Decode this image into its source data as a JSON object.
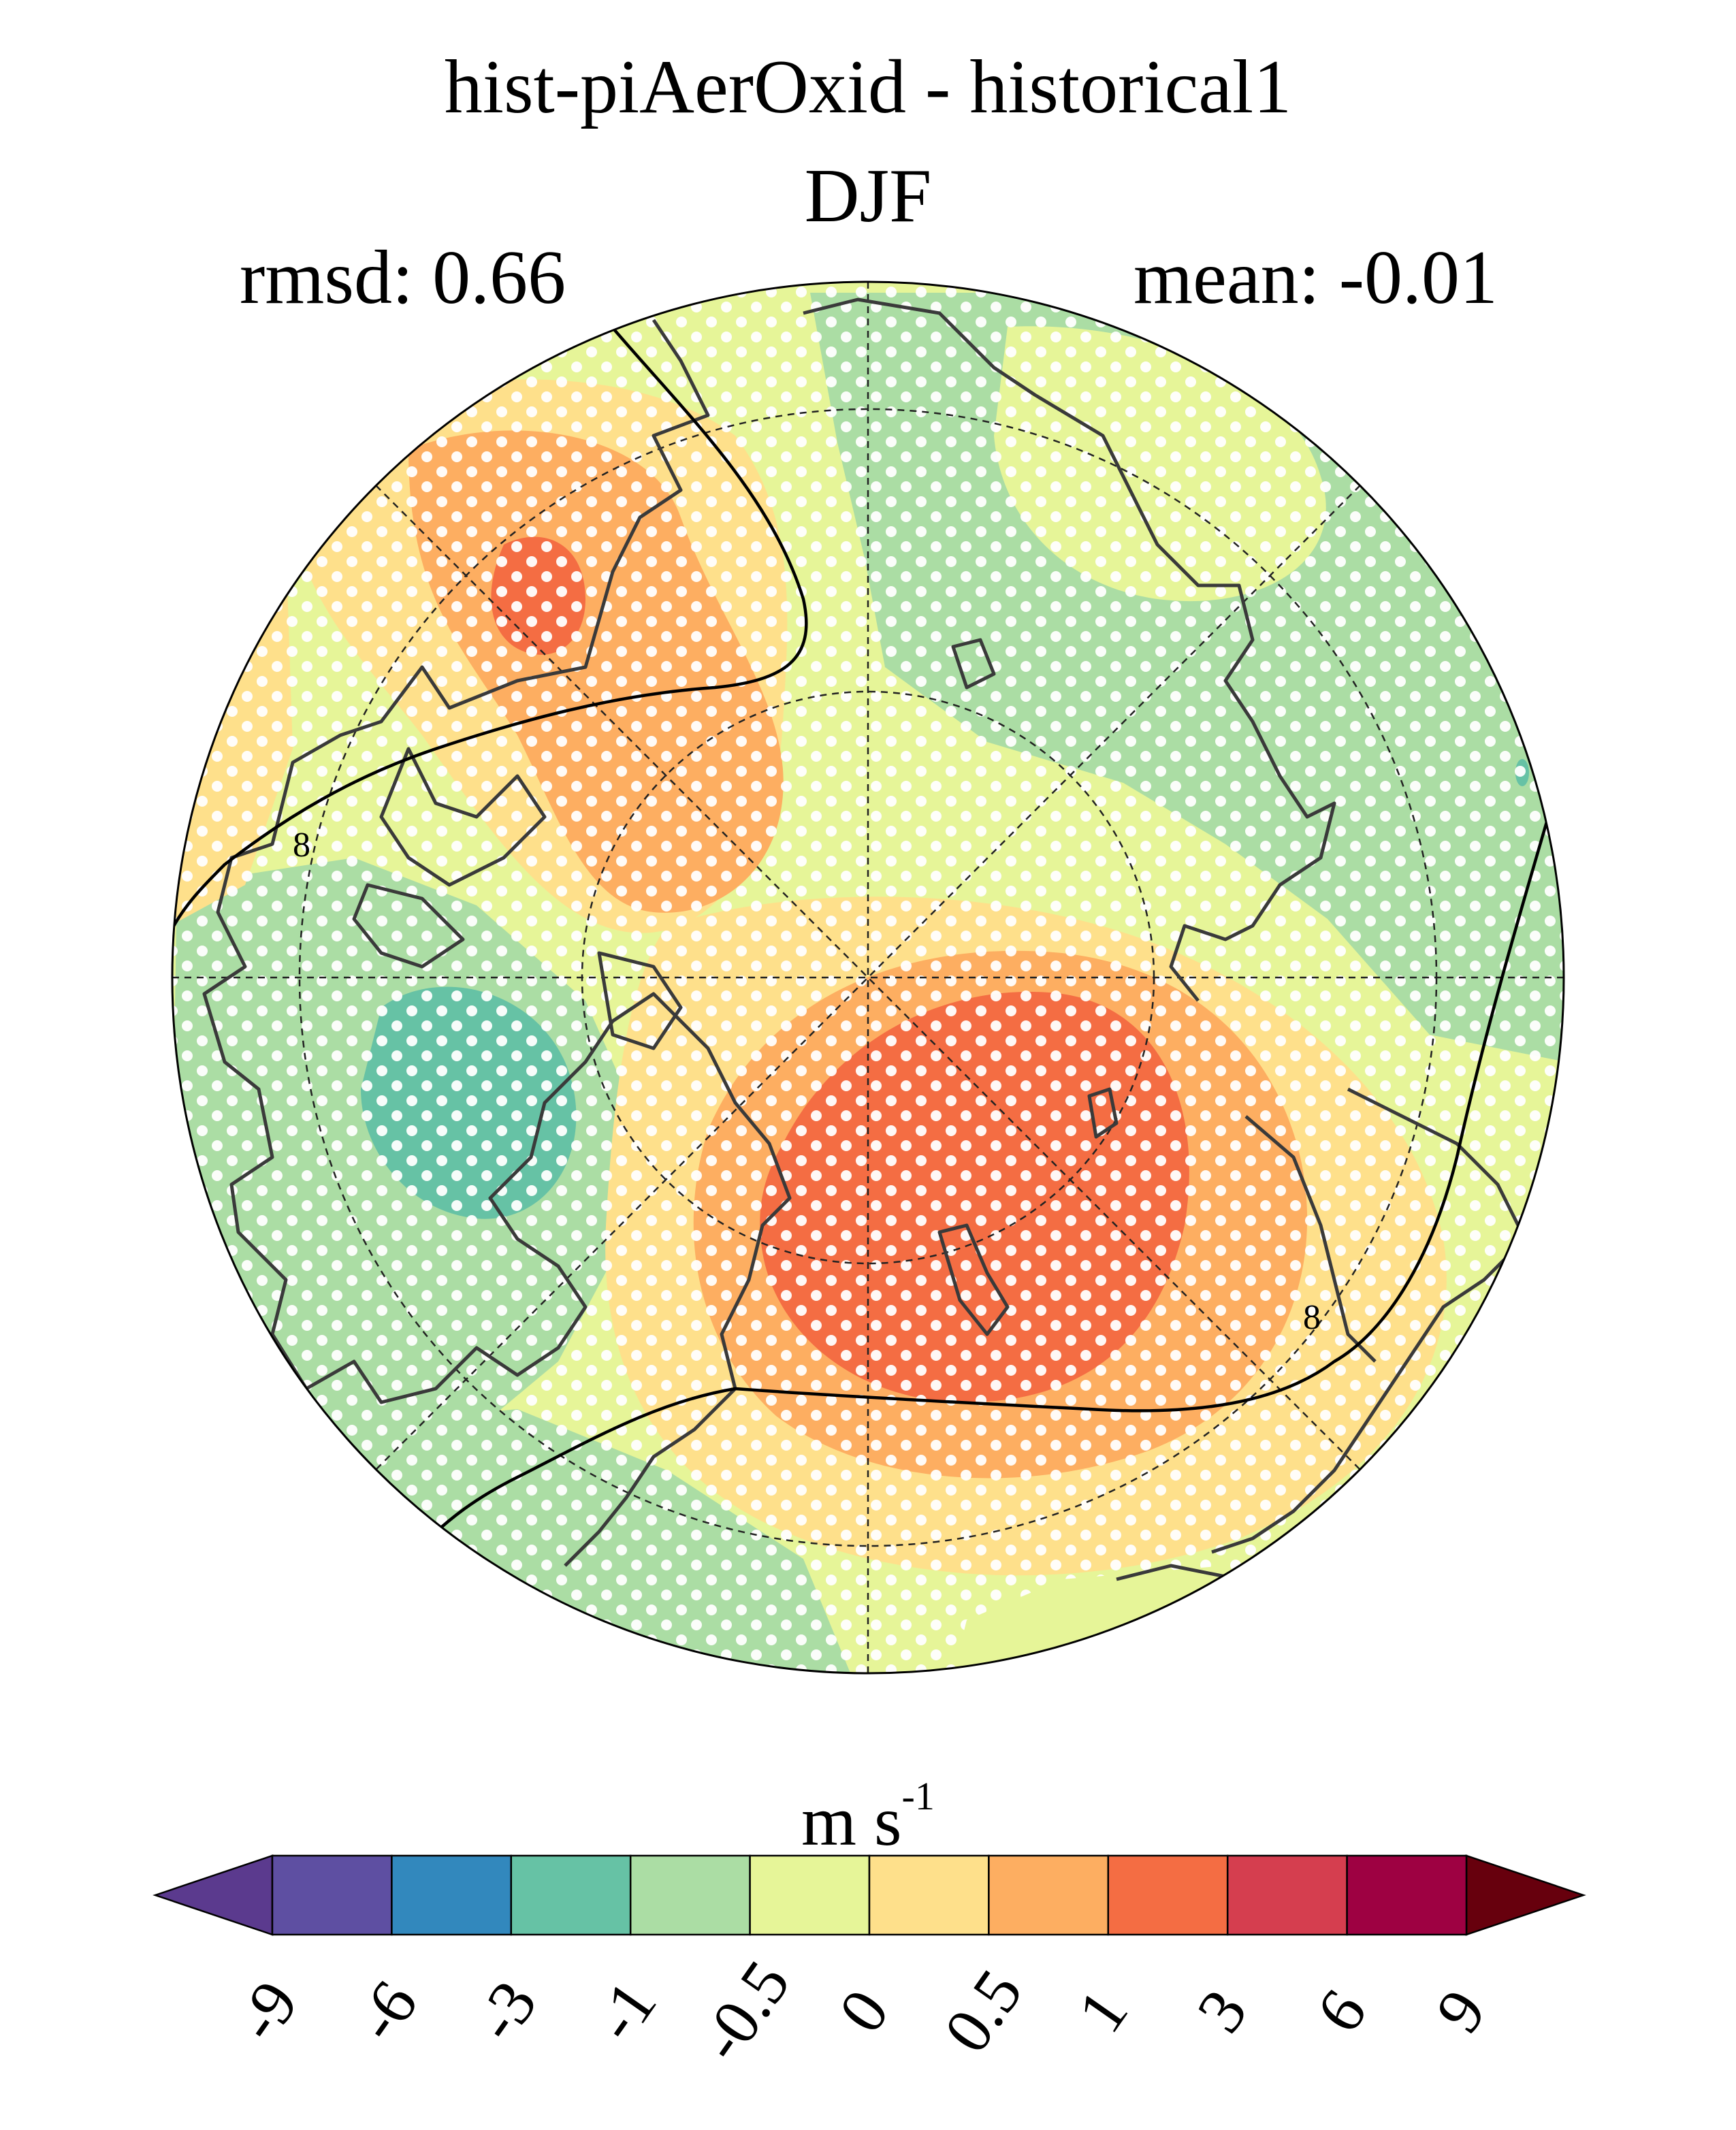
{
  "title": "hist-piAerOxid - historical1",
  "season": "DJF",
  "rmsd_label": "rmsd: 0.66",
  "mean_label": "mean: -0.01",
  "units": {
    "base": "m s",
    "exponent": "-1"
  },
  "map": {
    "projection": "north polar stereographic",
    "stippling": "white dots",
    "graticule": "dashed",
    "coastlines": "dark gray",
    "contour_line_label": "8"
  },
  "colorbar": {
    "extend": "both",
    "boundaries": [
      "-9",
      "-6",
      "-3",
      "-1",
      "-0.5",
      "0",
      "0.5",
      "1",
      "3",
      "6",
      "9"
    ],
    "colors": [
      "#5e4fa2",
      "#3288bd",
      "#66c2a5",
      "#abdda4",
      "#e6f598",
      "#fee08b",
      "#fdae61",
      "#f46d43",
      "#d53e4f",
      "#9e0142"
    ],
    "under_color": "#5b3a8e",
    "over_color": "#67000d"
  }
}
